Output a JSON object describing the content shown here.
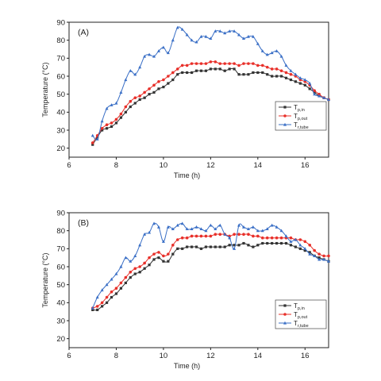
{
  "chart_data": [
    {
      "type": "line",
      "panel_label": "(A)",
      "xlabel": "Time (h)",
      "ylabel": "Temperature (°C)",
      "xlim": [
        6,
        17
      ],
      "ylim": [
        15,
        90
      ],
      "xticks": [
        6,
        8,
        10,
        12,
        14,
        16
      ],
      "yticks": [
        20,
        30,
        40,
        50,
        60,
        70,
        80,
        90
      ],
      "grid": false,
      "legend": {
        "position": "right"
      },
      "series": [
        {
          "name": "Tp,in",
          "label_main": "T",
          "label_sub": "p,in",
          "color": "#333333",
          "marker": "square",
          "x": [
            7.0,
            7.2,
            7.4,
            7.6,
            7.8,
            8.0,
            8.2,
            8.4,
            8.6,
            8.8,
            9.0,
            9.2,
            9.4,
            9.6,
            9.8,
            10.0,
            10.2,
            10.4,
            10.6,
            10.8,
            11.0,
            11.2,
            11.4,
            11.6,
            11.8,
            12.0,
            12.2,
            12.4,
            12.6,
            12.8,
            13.0,
            13.2,
            13.4,
            13.6,
            13.8,
            14.0,
            14.2,
            14.4,
            14.6,
            14.8,
            15.0,
            15.2,
            15.4,
            15.6,
            15.8,
            16.0,
            16.2,
            16.4,
            16.6,
            16.8,
            17.0
          ],
          "y": [
            22,
            26,
            30,
            31,
            32,
            34,
            37,
            40,
            43,
            45,
            47,
            48,
            50,
            51,
            53,
            54,
            56,
            58,
            61,
            62,
            62,
            62,
            63,
            63,
            63,
            64,
            64,
            64,
            63,
            64,
            64,
            61,
            61,
            61,
            62,
            62,
            62,
            61,
            60,
            60,
            60,
            59,
            58,
            57,
            56,
            55,
            53,
            51,
            49,
            48,
            47
          ]
        },
        {
          "name": "Tp,out",
          "label_main": "T",
          "label_sub": "p,out",
          "color": "#e8302a",
          "marker": "circle",
          "x": [
            7.0,
            7.2,
            7.4,
            7.6,
            7.8,
            8.0,
            8.2,
            8.4,
            8.6,
            8.8,
            9.0,
            9.2,
            9.4,
            9.6,
            9.8,
            10.0,
            10.2,
            10.4,
            10.6,
            10.8,
            11.0,
            11.2,
            11.4,
            11.6,
            11.8,
            12.0,
            12.2,
            12.4,
            12.6,
            12.8,
            13.0,
            13.2,
            13.4,
            13.6,
            13.8,
            14.0,
            14.2,
            14.4,
            14.6,
            14.8,
            15.0,
            15.2,
            15.4,
            15.6,
            15.8,
            16.0,
            16.2,
            16.4,
            16.6,
            16.8,
            17.0
          ],
          "y": [
            23,
            27,
            31,
            33,
            34,
            36,
            39,
            43,
            46,
            48,
            49,
            51,
            53,
            55,
            57,
            58,
            60,
            62,
            64,
            66,
            66,
            67,
            67,
            67,
            67,
            68,
            68,
            67,
            67,
            67,
            67,
            66,
            67,
            67,
            67,
            66,
            66,
            65,
            64,
            64,
            63,
            62,
            61,
            60,
            58,
            57,
            55,
            52,
            50,
            48,
            47
          ]
        },
        {
          "name": "Tr,tube",
          "label_main": "T",
          "label_sub": "r,tube",
          "color": "#3a6fc6",
          "marker": "triangle",
          "x": [
            7.0,
            7.2,
            7.4,
            7.6,
            7.8,
            8.0,
            8.2,
            8.4,
            8.6,
            8.8,
            9.0,
            9.2,
            9.4,
            9.6,
            9.8,
            10.0,
            10.2,
            10.4,
            10.6,
            10.8,
            11.0,
            11.2,
            11.4,
            11.6,
            11.8,
            12.0,
            12.2,
            12.4,
            12.6,
            12.8,
            13.0,
            13.2,
            13.4,
            13.6,
            13.8,
            14.0,
            14.2,
            14.4,
            14.6,
            14.8,
            15.0,
            15.2,
            15.4,
            15.6,
            15.8,
            16.0,
            16.2,
            16.4,
            16.6,
            16.8,
            17.0
          ],
          "y": [
            27,
            25,
            35,
            42,
            44,
            45,
            51,
            58,
            63,
            61,
            65,
            71,
            72,
            71,
            74,
            76,
            73,
            80,
            87,
            86,
            83,
            80,
            79,
            82,
            82,
            81,
            85,
            85,
            84,
            85,
            85,
            83,
            81,
            82,
            82,
            78,
            74,
            72,
            73,
            74,
            71,
            66,
            63,
            61,
            59,
            58,
            56,
            50,
            49,
            48,
            47
          ]
        }
      ]
    },
    {
      "type": "line",
      "panel_label": "(B)",
      "xlabel": "Time (h)",
      "ylabel": "Temperature (°C)",
      "xlim": [
        6,
        17
      ],
      "ylim": [
        15,
        90
      ],
      "xticks": [
        6,
        8,
        10,
        12,
        14,
        16
      ],
      "yticks": [
        20,
        30,
        40,
        50,
        60,
        70,
        80,
        90
      ],
      "grid": false,
      "legend": {
        "position": "right"
      },
      "series": [
        {
          "name": "Tp,in",
          "label_main": "T",
          "label_sub": "p,in",
          "color": "#333333",
          "marker": "square",
          "x": [
            7.0,
            7.2,
            7.4,
            7.6,
            7.8,
            8.0,
            8.2,
            8.4,
            8.6,
            8.8,
            9.0,
            9.2,
            9.4,
            9.6,
            9.8,
            10.0,
            10.2,
            10.4,
            10.6,
            10.8,
            11.0,
            11.2,
            11.4,
            11.6,
            11.8,
            12.0,
            12.2,
            12.4,
            12.6,
            12.8,
            13.0,
            13.2,
            13.4,
            13.6,
            13.8,
            14.0,
            14.2,
            14.4,
            14.6,
            14.8,
            15.0,
            15.2,
            15.4,
            15.6,
            15.8,
            16.0,
            16.2,
            16.4,
            16.6,
            16.8,
            17.0
          ],
          "y": [
            36,
            36,
            38,
            40,
            43,
            45,
            48,
            51,
            54,
            56,
            57,
            59,
            61,
            64,
            65,
            63,
            63,
            67,
            70,
            70,
            71,
            71,
            71,
            70,
            71,
            71,
            71,
            71,
            71,
            72,
            72,
            72,
            73,
            72,
            71,
            72,
            73,
            73,
            73,
            73,
            73,
            73,
            72,
            71,
            70,
            69,
            68,
            66,
            65,
            64,
            63
          ]
        },
        {
          "name": "Tp,out",
          "label_main": "T",
          "label_sub": "p,out",
          "color": "#e8302a",
          "marker": "circle",
          "x": [
            7.0,
            7.2,
            7.4,
            7.6,
            7.8,
            8.0,
            8.2,
            8.4,
            8.6,
            8.8,
            9.0,
            9.2,
            9.4,
            9.6,
            9.8,
            10.0,
            10.2,
            10.4,
            10.6,
            10.8,
            11.0,
            11.2,
            11.4,
            11.6,
            11.8,
            12.0,
            12.2,
            12.4,
            12.6,
            12.8,
            13.0,
            13.2,
            13.4,
            13.6,
            13.8,
            14.0,
            14.2,
            14.4,
            14.6,
            14.8,
            15.0,
            15.2,
            15.4,
            15.6,
            15.8,
            16.0,
            16.2,
            16.4,
            16.6,
            16.8,
            17.0
          ],
          "y": [
            37,
            38,
            40,
            43,
            46,
            48,
            51,
            54,
            57,
            59,
            60,
            62,
            65,
            67,
            68,
            66,
            67,
            72,
            75,
            76,
            76,
            77,
            77,
            77,
            77,
            77,
            78,
            78,
            78,
            77,
            78,
            78,
            78,
            78,
            77,
            77,
            76,
            76,
            76,
            76,
            76,
            76,
            76,
            75,
            75,
            74,
            72,
            69,
            67,
            66,
            66
          ]
        },
        {
          "name": "Tr,tube",
          "label_main": "T",
          "label_sub": "r,tube",
          "color": "#3a6fc6",
          "marker": "triangle",
          "x": [
            7.0,
            7.2,
            7.4,
            7.6,
            7.8,
            8.0,
            8.2,
            8.4,
            8.6,
            8.8,
            9.0,
            9.2,
            9.4,
            9.6,
            9.8,
            10.0,
            10.2,
            10.4,
            10.6,
            10.8,
            11.0,
            11.2,
            11.4,
            11.6,
            11.8,
            12.0,
            12.2,
            12.4,
            12.6,
            12.8,
            13.0,
            13.2,
            13.4,
            13.6,
            13.8,
            14.0,
            14.2,
            14.4,
            14.6,
            14.8,
            15.0,
            15.2,
            15.4,
            15.6,
            15.8,
            16.0,
            16.2,
            16.4,
            16.6,
            16.8,
            17.0
          ],
          "y": [
            37,
            43,
            47,
            50,
            53,
            56,
            60,
            65,
            63,
            66,
            72,
            78,
            79,
            84,
            82,
            74,
            82,
            81,
            83,
            84,
            81,
            81,
            82,
            81,
            80,
            83,
            81,
            83,
            78,
            76,
            70,
            83,
            82,
            81,
            82,
            80,
            80,
            81,
            83,
            82,
            80,
            77,
            74,
            75,
            72,
            70,
            67,
            66,
            64,
            64,
            63
          ]
        }
      ]
    }
  ]
}
